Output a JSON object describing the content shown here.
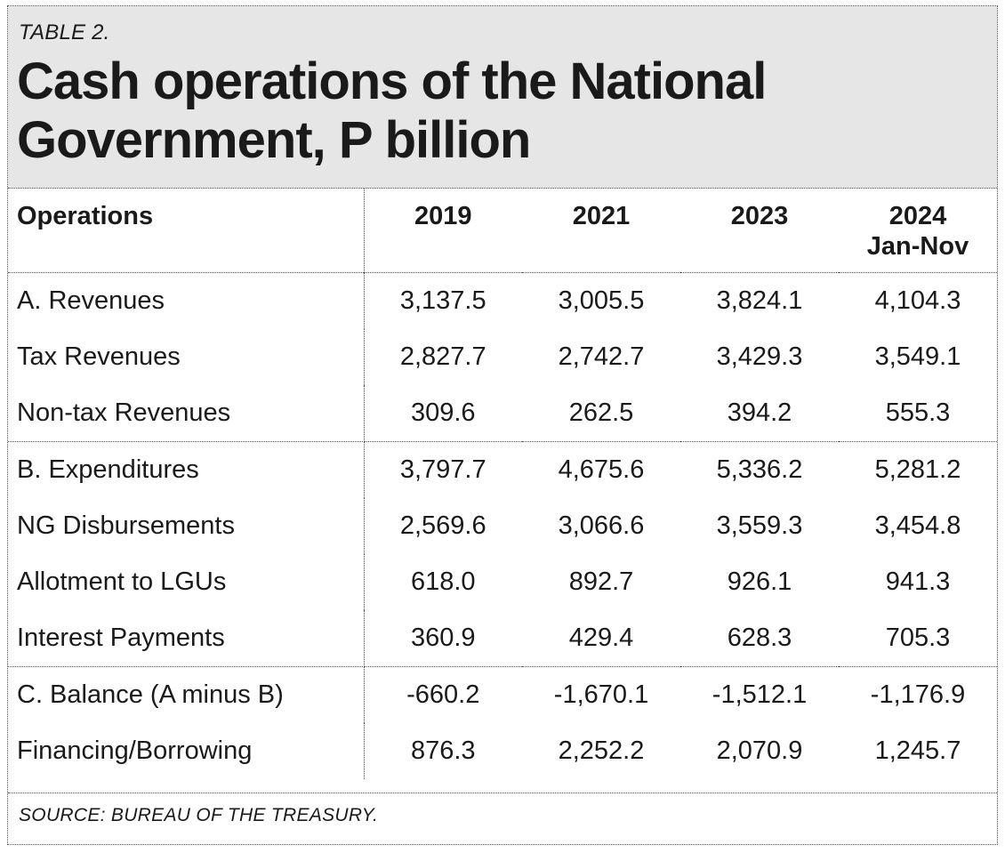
{
  "header": {
    "table_label": "TABLE 2.",
    "title": "Cash operations of the National Government, P billion"
  },
  "chart_data": {
    "type": "table",
    "title": "Cash operations of the National Government, P billion",
    "columns": [
      {
        "label": "Operations",
        "sub": ""
      },
      {
        "label": "2019",
        "sub": ""
      },
      {
        "label": "2021",
        "sub": ""
      },
      {
        "label": "2023",
        "sub": ""
      },
      {
        "label": "2024",
        "sub": "Jan-Nov"
      }
    ],
    "rows": [
      {
        "label": "A. Revenues",
        "values": [
          "3,137.5",
          "3,005.5",
          "3,824.1",
          "4,104.3"
        ]
      },
      {
        "label": "Tax Revenues",
        "values": [
          "2,827.7",
          "2,742.7",
          "3,429.3",
          "3,549.1"
        ]
      },
      {
        "label": "Non-tax Revenues",
        "values": [
          "309.6",
          "262.5",
          "394.2",
          "555.3"
        ]
      },
      {
        "label": "B. Expenditures",
        "values": [
          "3,797.7",
          "4,675.6",
          "5,336.2",
          "5,281.2"
        ]
      },
      {
        "label": "NG Disbursements",
        "values": [
          "2,569.6",
          "3,066.6",
          "3,559.3",
          "3,454.8"
        ]
      },
      {
        "label": "Allotment to LGUs",
        "values": [
          "618.0",
          "892.7",
          "926.1",
          "941.3"
        ]
      },
      {
        "label": "Interest Payments",
        "values": [
          "360.9",
          "429.4",
          "628.3",
          "705.3"
        ]
      },
      {
        "label": "C. Balance (A minus B)",
        "values": [
          "-660.2",
          "-1,670.1",
          "-1,512.1",
          "-1,176.9"
        ]
      },
      {
        "label": "Financing/Borrowing",
        "values": [
          "876.3",
          "2,252.2",
          "2,070.9",
          "1,245.7"
        ]
      }
    ]
  },
  "footer": {
    "source": "SOURCE: BUREAU OF THE TREASURY."
  }
}
